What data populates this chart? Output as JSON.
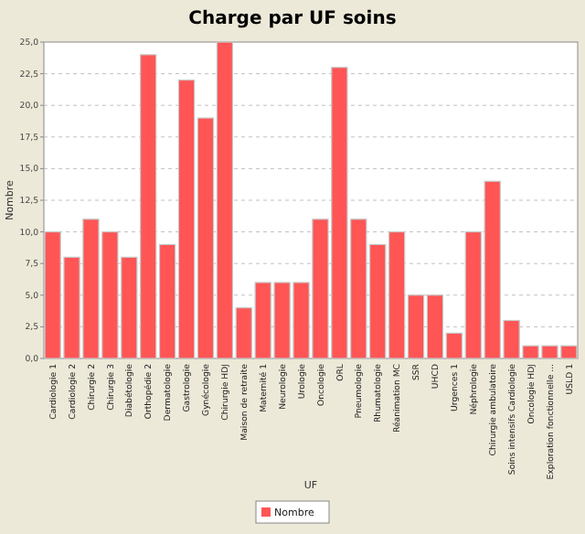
{
  "chart_data": {
    "type": "bar",
    "title": "Charge par UF soins",
    "xlabel": "UF",
    "ylabel": "Nombre",
    "categories": [
      "Cardiologie 1",
      "Cardiologie 2",
      "Chirurgie 2",
      "Chirurgie 3",
      "Diabétologie",
      "Orthopédie 2",
      "Dermatologie",
      "Gastrologie",
      "Gynécologie",
      "Chirurgie HDJ",
      "Maison de retraite",
      "Maternité 1",
      "Neurologie",
      "Urologie",
      "Oncologie",
      "ORL",
      "Pneumologie",
      "Rhumatologie",
      "Réanimation MC",
      "SSR",
      "UHCD",
      "Urgences 1",
      "Néphrologie",
      "Chirurgie ambulatoire",
      "Soins intensifs Cardiologie",
      "Oncologie HDJ",
      "Exploration fonctionnelle ...",
      "USLD 1"
    ],
    "series": [
      {
        "name": "Nombre",
        "color": "#ff5555",
        "values": [
          10,
          8,
          11,
          10,
          8,
          24,
          9,
          22,
          19,
          25,
          4,
          6,
          6,
          6,
          11,
          23,
          11,
          9,
          10,
          5,
          5,
          2,
          10,
          14,
          3,
          1,
          1,
          1
        ]
      }
    ],
    "ylim": [
      0,
      25
    ],
    "yticks": [
      {
        "value": 0,
        "label": "0,0"
      },
      {
        "value": 2.5,
        "label": "2,5"
      },
      {
        "value": 5,
        "label": "5,0"
      },
      {
        "value": 7.5,
        "label": "7,5"
      },
      {
        "value": 10,
        "label": "10,0"
      },
      {
        "value": 12.5,
        "label": "12,5"
      },
      {
        "value": 15,
        "label": "15,0"
      },
      {
        "value": 17.5,
        "label": "17,5"
      },
      {
        "value": 20,
        "label": "20,0"
      },
      {
        "value": 22.5,
        "label": "22,5"
      },
      {
        "value": 25,
        "label": "25,0"
      }
    ],
    "grid": "y",
    "legend": "bottom"
  }
}
